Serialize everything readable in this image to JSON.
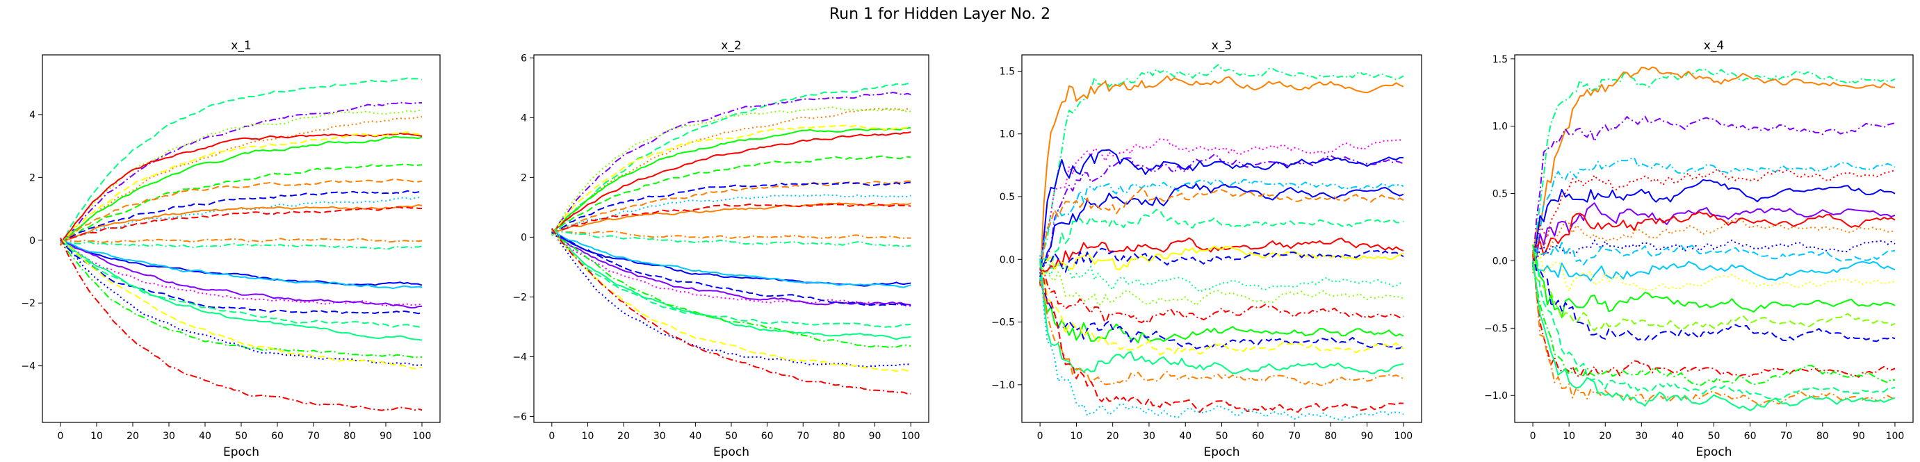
{
  "figure": {
    "title": "Run 1 for Hidden Layer No. 2"
  },
  "palette": [
    "#ff0000",
    "#ff8000",
    "#ffff00",
    "#80ff00",
    "#00ff00",
    "#00ff80",
    "#00ffd0",
    "#00c8ff",
    "#0000ff",
    "#8000ff",
    "#ff00ff"
  ],
  "chart_data": [
    {
      "type": "line",
      "title": "x_1",
      "xlabel": "Epoch",
      "ylabel": "",
      "xlim": [
        -5,
        105
      ],
      "ylim": [
        -5.8,
        5.9
      ],
      "xticks": [
        0,
        10,
        20,
        30,
        40,
        50,
        60,
        70,
        80,
        90,
        100
      ],
      "yticks": [
        -4,
        -2,
        0,
        2,
        4
      ],
      "series": [
        {
          "final": 5.2,
          "color": "#00ff80",
          "style": "dashed"
        },
        {
          "final": 4.6,
          "color": "#8000ff",
          "style": "dashdot"
        },
        {
          "final": 4.3,
          "color": "#ff8000",
          "style": "dotted"
        },
        {
          "final": 4.2,
          "color": "#80ff00",
          "style": "dotted"
        },
        {
          "final": 3.5,
          "color": "#00ff00",
          "style": "solid"
        },
        {
          "final": 3.4,
          "color": "#ff0000",
          "style": "solid"
        },
        {
          "final": 3.45,
          "color": "#ffff00",
          "style": "dashed"
        },
        {
          "final": 2.6,
          "color": "#00ff00",
          "style": "dashed"
        },
        {
          "final": 1.9,
          "color": "#ff8000",
          "style": "dashed"
        },
        {
          "final": 1.6,
          "color": "#0000ff",
          "style": "dashed"
        },
        {
          "final": 1.4,
          "color": "#00c8ff",
          "style": "dotted"
        },
        {
          "final": 1.1,
          "color": "#ff8000",
          "style": "solid"
        },
        {
          "final": 1.05,
          "color": "#ff0000",
          "style": "dashed"
        },
        {
          "final": 0.0,
          "color": "#ff8000",
          "style": "dashdot"
        },
        {
          "final": -0.2,
          "color": "#00ff80",
          "style": "dashdot"
        },
        {
          "final": -1.5,
          "color": "#0000ff",
          "style": "solid"
        },
        {
          "final": -1.6,
          "color": "#00c8ff",
          "style": "solid"
        },
        {
          "final": -2.1,
          "color": "#ff00ff",
          "style": "dotted"
        },
        {
          "final": -2.2,
          "color": "#8000ff",
          "style": "solid"
        },
        {
          "final": -2.3,
          "color": "#0000ff",
          "style": "dashed"
        },
        {
          "final": -2.8,
          "color": "#00ff80",
          "style": "dashed"
        },
        {
          "final": -3.3,
          "color": "#00ff80",
          "style": "solid"
        },
        {
          "final": -3.7,
          "color": "#00ff00",
          "style": "dashdot"
        },
        {
          "final": -4.1,
          "color": "#0000ff",
          "style": "dotted"
        },
        {
          "final": -4.3,
          "color": "#ffff00",
          "style": "dashed"
        },
        {
          "final": -5.4,
          "color": "#ff0000",
          "style": "dashdot"
        }
      ]
    },
    {
      "type": "line",
      "title": "x_2",
      "xlabel": "Epoch",
      "ylabel": "",
      "xlim": [
        -5,
        105
      ],
      "ylim": [
        -6.2,
        6.1
      ],
      "xticks": [
        0,
        10,
        20,
        30,
        40,
        50,
        60,
        70,
        80,
        90,
        100
      ],
      "yticks": [
        -6,
        -4,
        -2,
        0,
        2,
        4,
        6
      ],
      "series": [
        {
          "final": 5.6,
          "color": "#00ff80",
          "style": "dashed"
        },
        {
          "final": 4.9,
          "color": "#8000ff",
          "style": "dashdot"
        },
        {
          "final": 4.5,
          "color": "#ff8000",
          "style": "dotted"
        },
        {
          "final": 4.3,
          "color": "#80ff00",
          "style": "dotted"
        },
        {
          "final": 3.8,
          "color": "#00ff00",
          "style": "solid"
        },
        {
          "final": 3.7,
          "color": "#ff0000",
          "style": "solid"
        },
        {
          "final": 3.7,
          "color": "#ffff00",
          "style": "dashed"
        },
        {
          "final": 2.8,
          "color": "#00ff00",
          "style": "dashed"
        },
        {
          "final": 2.0,
          "color": "#ff8000",
          "style": "dashed"
        },
        {
          "final": 1.8,
          "color": "#0000ff",
          "style": "dashed"
        },
        {
          "final": 1.5,
          "color": "#00c8ff",
          "style": "dotted"
        },
        {
          "final": 1.2,
          "color": "#ff8000",
          "style": "solid"
        },
        {
          "final": 1.1,
          "color": "#ff0000",
          "style": "dashed"
        },
        {
          "final": 0.0,
          "color": "#ff8000",
          "style": "dashdot"
        },
        {
          "final": -0.3,
          "color": "#00ff80",
          "style": "dashdot"
        },
        {
          "final": -1.6,
          "color": "#0000ff",
          "style": "solid"
        },
        {
          "final": -1.7,
          "color": "#00c8ff",
          "style": "solid"
        },
        {
          "final": -2.2,
          "color": "#ff00ff",
          "style": "dotted"
        },
        {
          "final": -2.3,
          "color": "#8000ff",
          "style": "solid"
        },
        {
          "final": -2.4,
          "color": "#0000ff",
          "style": "dashed"
        },
        {
          "final": -3.0,
          "color": "#00ff80",
          "style": "dashed"
        },
        {
          "final": -3.5,
          "color": "#00ff80",
          "style": "solid"
        },
        {
          "final": -3.9,
          "color": "#00ff00",
          "style": "dashdot"
        },
        {
          "final": -4.4,
          "color": "#0000ff",
          "style": "dotted"
        },
        {
          "final": -4.6,
          "color": "#ffff00",
          "style": "dashed"
        },
        {
          "final": -5.7,
          "color": "#ff0000",
          "style": "dashdot"
        }
      ]
    },
    {
      "type": "line",
      "title": "x_3",
      "xlabel": "Epoch",
      "ylabel": "",
      "xlim": [
        -5,
        105
      ],
      "ylim": [
        -1.3,
        1.63
      ],
      "xticks": [
        0,
        10,
        20,
        30,
        40,
        50,
        60,
        70,
        80,
        90,
        100
      ],
      "yticks": [
        -1.0,
        -0.5,
        0.0,
        0.5,
        1.0,
        1.5
      ],
      "series": [
        {
          "final": 1.5,
          "color": "#00ff80",
          "style": "dashdot"
        },
        {
          "final": 1.4,
          "color": "#ff8000",
          "style": "solid"
        },
        {
          "final": 0.88,
          "color": "#ff00ff",
          "style": "dotted"
        },
        {
          "final": 0.78,
          "color": "#8000ff",
          "style": "dashdot"
        },
        {
          "final": 0.75,
          "color": "#0000ff",
          "style": "solid"
        },
        {
          "final": 0.6,
          "color": "#00c8ff",
          "style": "dashdot"
        },
        {
          "final": 0.52,
          "color": "#0000ff",
          "style": "solid"
        },
        {
          "final": 0.48,
          "color": "#ff8000",
          "style": "dashed"
        },
        {
          "final": 0.3,
          "color": "#00ff80",
          "style": "dashed"
        },
        {
          "final": 0.1,
          "color": "#ff0000",
          "style": "solid"
        },
        {
          "final": 0.05,
          "color": "#ffff00",
          "style": "solid"
        },
        {
          "final": 0.02,
          "color": "#0000ff",
          "style": "dashed"
        },
        {
          "final": -0.2,
          "color": "#00ff80",
          "style": "dotted"
        },
        {
          "final": -0.3,
          "color": "#80ff00",
          "style": "dotted"
        },
        {
          "final": -0.45,
          "color": "#ff0000",
          "style": "dashdot"
        },
        {
          "final": -0.6,
          "color": "#00ff00",
          "style": "solid"
        },
        {
          "final": -0.65,
          "color": "#0000ff",
          "style": "dashed"
        },
        {
          "final": -0.7,
          "color": "#ffff00",
          "style": "dashed"
        },
        {
          "final": -0.85,
          "color": "#00ff80",
          "style": "solid"
        },
        {
          "final": -0.93,
          "color": "#ff8000",
          "style": "dashdot"
        },
        {
          "final": -1.2,
          "color": "#ff0000",
          "style": "dashed"
        },
        {
          "final": -1.22,
          "color": "#00c8ff",
          "style": "dotted"
        }
      ]
    },
    {
      "type": "line",
      "title": "x_4",
      "xlabel": "Epoch",
      "ylabel": "",
      "xlim": [
        -5,
        105
      ],
      "ylim": [
        -1.2,
        1.53
      ],
      "xticks": [
        0,
        10,
        20,
        30,
        40,
        50,
        60,
        70,
        80,
        90,
        100
      ],
      "yticks": [
        -1.0,
        -0.5,
        0.0,
        0.5,
        1.0,
        1.5
      ],
      "series": [
        {
          "final": 1.37,
          "color": "#00ff80",
          "style": "dashdot"
        },
        {
          "final": 1.35,
          "color": "#ff8000",
          "style": "solid"
        },
        {
          "final": 1.0,
          "color": "#8000ff",
          "style": "dashdot"
        },
        {
          "final": 0.7,
          "color": "#00c8ff",
          "style": "dashdot"
        },
        {
          "final": 0.62,
          "color": "#ff0000",
          "style": "dotted"
        },
        {
          "final": 0.5,
          "color": "#0000ff",
          "style": "solid"
        },
        {
          "final": 0.35,
          "color": "#8000ff",
          "style": "solid"
        },
        {
          "final": 0.3,
          "color": "#ff0000",
          "style": "solid"
        },
        {
          "final": 0.25,
          "color": "#ff8000",
          "style": "dotted"
        },
        {
          "final": 0.12,
          "color": "#0000ff",
          "style": "dotted"
        },
        {
          "final": 0.05,
          "color": "#00c8ff",
          "style": "dashed"
        },
        {
          "final": -0.05,
          "color": "#00c8ff",
          "style": "solid"
        },
        {
          "final": -0.2,
          "color": "#ffff00",
          "style": "dotted"
        },
        {
          "final": -0.33,
          "color": "#00ff00",
          "style": "solid"
        },
        {
          "final": -0.45,
          "color": "#80ff00",
          "style": "dashed"
        },
        {
          "final": -0.55,
          "color": "#0000ff",
          "style": "dashed"
        },
        {
          "final": -0.8,
          "color": "#ff0000",
          "style": "dashdot"
        },
        {
          "final": -0.85,
          "color": "#00ff00",
          "style": "dashdot"
        },
        {
          "final": -0.95,
          "color": "#00ff80",
          "style": "dashed"
        },
        {
          "final": -1.0,
          "color": "#ff8000",
          "style": "dashdot"
        },
        {
          "final": -1.03,
          "color": "#00ff80",
          "style": "solid"
        }
      ]
    }
  ]
}
